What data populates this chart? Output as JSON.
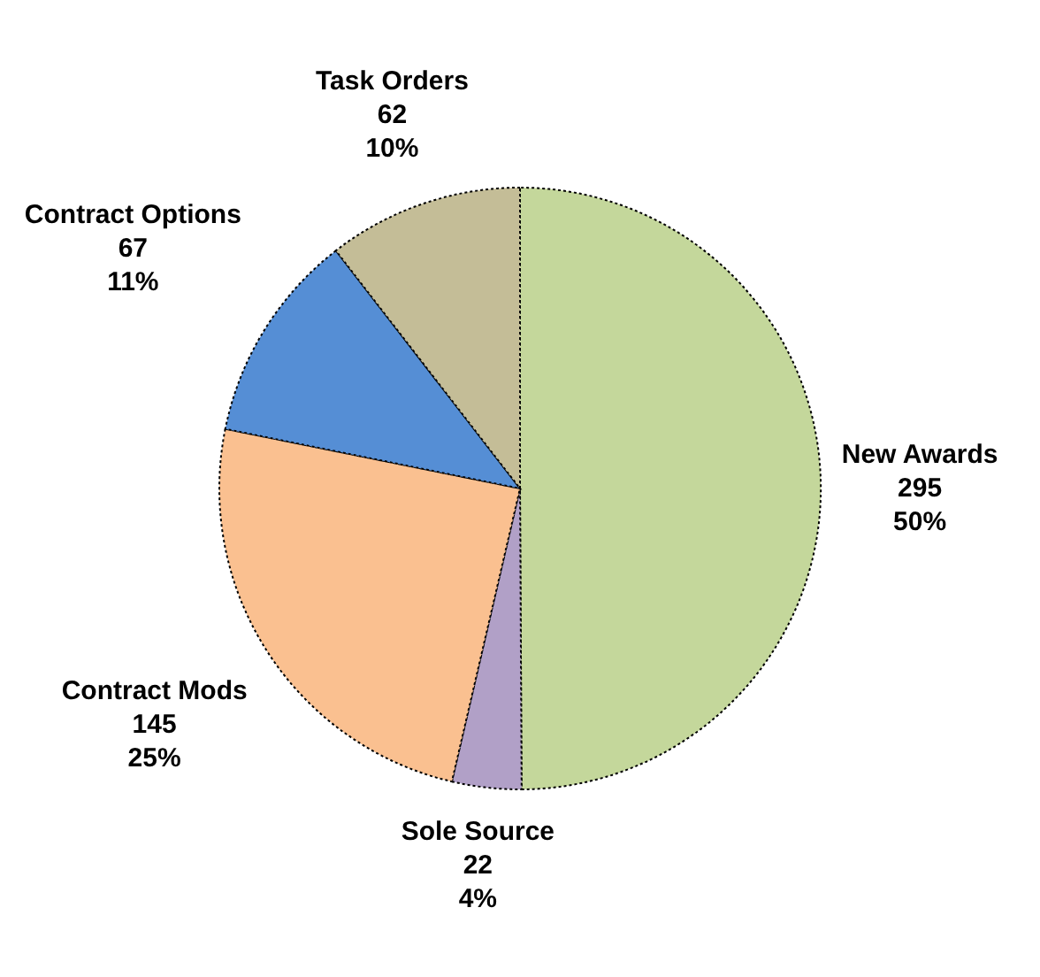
{
  "chart_data": {
    "type": "pie",
    "categories": [
      "New Awards",
      "Sole Source",
      "Contract Mods",
      "Contract Options",
      "Task Orders"
    ],
    "values": [
      295,
      22,
      145,
      67,
      62
    ],
    "value_labels": [
      "295\n50%",
      "22\n4%",
      "145\n25%",
      "67\n11%",
      "62\n10%"
    ],
    "colors": [
      "#c4d79b",
      "#b1a0c7",
      "#fac090",
      "#558ed5",
      "#c4bd97"
    ]
  }
}
